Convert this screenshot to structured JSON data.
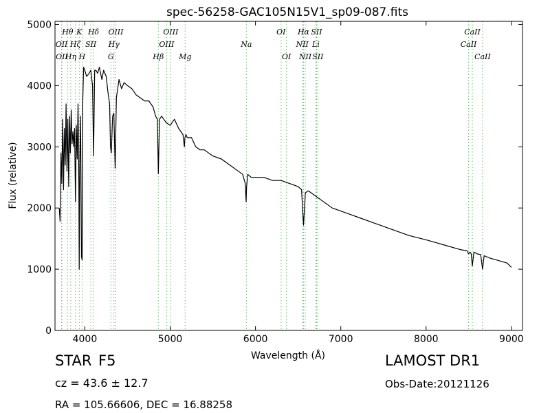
{
  "chart_data": {
    "type": "line",
    "title": "spec-56258-GAC105N15V1_sp09-087.fits",
    "xlabel": "Wavelength (Å)",
    "ylabel": "Flux (relative)",
    "xlim": [
      3650,
      9130
    ],
    "ylim": [
      0,
      5050
    ],
    "xticks": [
      4000,
      5000,
      6000,
      7000,
      8000,
      9000
    ],
    "yticks": [
      0,
      1000,
      2000,
      3000,
      4000,
      5000
    ],
    "grid": false,
    "colors": {
      "spectrum": "#000000",
      "lines": "#66bb66"
    },
    "spectrum": {
      "x": [
        3700,
        3710,
        3720,
        3730,
        3740,
        3750,
        3760,
        3770,
        3780,
        3790,
        3800,
        3810,
        3820,
        3830,
        3840,
        3850,
        3860,
        3870,
        3880,
        3890,
        3900,
        3910,
        3920,
        3930,
        3934,
        3940,
        3950,
        3960,
        3968,
        3975,
        3985,
        4000,
        4020,
        4050,
        4070,
        4090,
        4102,
        4115,
        4130,
        4150,
        4170,
        4200,
        4220,
        4250,
        4270,
        4290,
        4300,
        4310,
        4325,
        4340,
        4355,
        4370,
        4400,
        4430,
        4460,
        4500,
        4550,
        4600,
        4650,
        4700,
        4750,
        4800,
        4830,
        4850,
        4861,
        4875,
        4900,
        4950,
        5000,
        5050,
        5100,
        5150,
        5167,
        5173,
        5185,
        5200,
        5250,
        5300,
        5350,
        5400,
        5450,
        5500,
        5600,
        5700,
        5800,
        5850,
        5880,
        5890,
        5896,
        5910,
        5950,
        6000,
        6100,
        6200,
        6300,
        6400,
        6500,
        6540,
        6563,
        6585,
        6620,
        6700,
        6800,
        6900,
        7000,
        7200,
        7400,
        7600,
        7800,
        8000,
        8200,
        8400,
        8480,
        8498,
        8515,
        8530,
        8542,
        8560,
        8600,
        8640,
        8662,
        8680,
        8750,
        8850,
        8950,
        9000
      ],
      "y": [
        2000,
        1780,
        2900,
        2400,
        3450,
        2300,
        3300,
        2700,
        3700,
        2600,
        3450,
        2350,
        3500,
        2900,
        3600,
        3050,
        3250,
        3000,
        3300,
        2100,
        3350,
        2800,
        3700,
        2400,
        1000,
        2700,
        3500,
        1200,
        1150,
        3700,
        4300,
        4250,
        4150,
        4200,
        4250,
        4000,
        2850,
        4250,
        4250,
        4200,
        4300,
        4100,
        4250,
        4150,
        3900,
        3700,
        3000,
        2900,
        3500,
        3550,
        2650,
        3800,
        4100,
        3950,
        4050,
        4000,
        3950,
        3850,
        3800,
        3750,
        3750,
        3650,
        3500,
        3450,
        2560,
        3450,
        3500,
        3400,
        3350,
        3450,
        3300,
        3200,
        3000,
        3150,
        3200,
        3150,
        3150,
        3000,
        2950,
        2950,
        2900,
        2850,
        2800,
        2700,
        2600,
        2550,
        2400,
        2100,
        2350,
        2550,
        2500,
        2500,
        2500,
        2450,
        2450,
        2400,
        2350,
        2300,
        1720,
        2250,
        2280,
        2200,
        2100,
        2000,
        1950,
        1850,
        1750,
        1650,
        1550,
        1480,
        1400,
        1320,
        1300,
        1250,
        1280,
        1250,
        1050,
        1280,
        1250,
        1240,
        1000,
        1220,
        1180,
        1140,
        1100,
        1030
      ]
    },
    "emission_lines": [
      {
        "label": "OII",
        "x": 3727,
        "row": 2
      },
      {
        "label": "OII",
        "x": 3730,
        "row": 3
      },
      {
        "label": "Hθ",
        "x": 3798,
        "row": 1
      },
      {
        "label": "Hη",
        "x": 3835,
        "row": 3
      },
      {
        "label": "Hζ",
        "x": 3889,
        "row": 2
      },
      {
        "label": "K",
        "x": 3934,
        "row": 1
      },
      {
        "label": "H",
        "x": 3968,
        "row": 3
      },
      {
        "label": "SII",
        "x": 4070,
        "row": 2
      },
      {
        "label": "Hδ",
        "x": 4102,
        "row": 1
      },
      {
        "label": "Hγ",
        "x": 4341,
        "row": 2
      },
      {
        "label": "G",
        "x": 4305,
        "row": 3
      },
      {
        "label": "OIII",
        "x": 4363,
        "row": 1
      },
      {
        "label": "Hβ",
        "x": 4861,
        "row": 3
      },
      {
        "label": "OIII",
        "x": 4959,
        "row": 2
      },
      {
        "label": "OIII",
        "x": 5007,
        "row": 1
      },
      {
        "label": "Mg",
        "x": 5175,
        "row": 3
      },
      {
        "label": "Na",
        "x": 5893,
        "row": 2
      },
      {
        "label": "OI",
        "x": 6300,
        "row": 1
      },
      {
        "label": "OI",
        "x": 6363,
        "row": 3
      },
      {
        "label": "NII",
        "x": 6548,
        "row": 2
      },
      {
        "label": "Hα",
        "x": 6563,
        "row": 1
      },
      {
        "label": "NII",
        "x": 6583,
        "row": 3
      },
      {
        "label": "Li",
        "x": 6708,
        "row": 2
      },
      {
        "label": "SII",
        "x": 6716,
        "row": 1
      },
      {
        "label": "SII",
        "x": 6731,
        "row": 3
      },
      {
        "label": "CaII",
        "x": 8498,
        "row": 2
      },
      {
        "label": "CaII",
        "x": 8542,
        "row": 1
      },
      {
        "label": "CaII",
        "x": 8662,
        "row": 3
      }
    ]
  },
  "info": {
    "class": "STAR",
    "subclass": "F5",
    "redshift": "cz = 43.6  ± 12.7",
    "coords": "RA = 105.66606, DEC = 16.88258",
    "survey": "LAMOST DR1",
    "obs_date": "Obs-Date:20121126"
  }
}
